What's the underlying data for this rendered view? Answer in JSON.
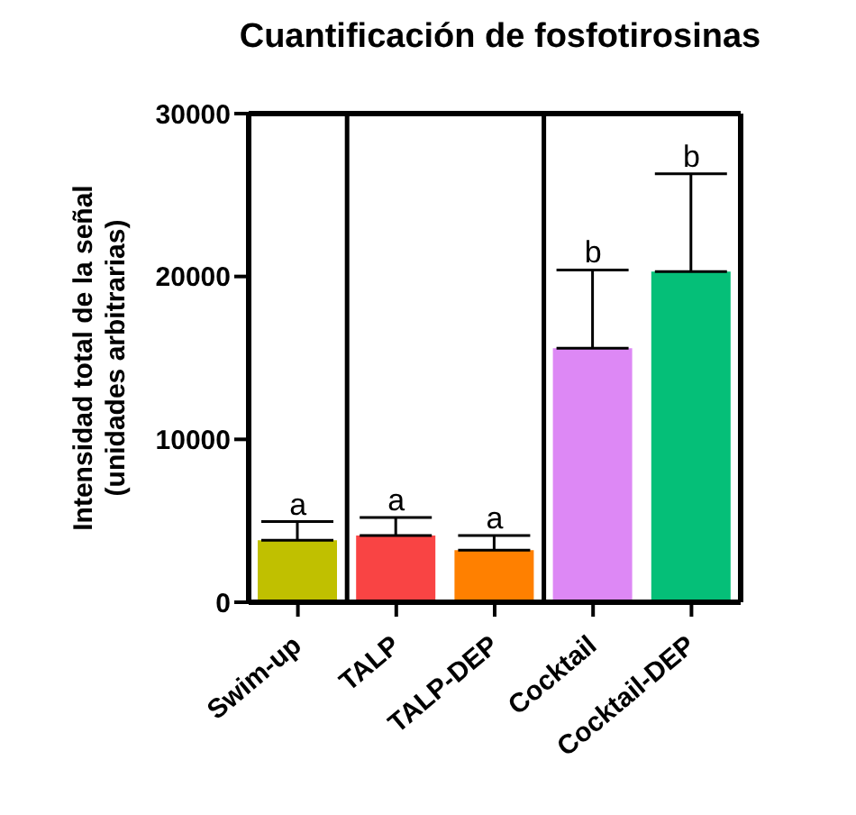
{
  "chart_data": {
    "type": "bar",
    "title": "Cuantificación de fosfotirosinas",
    "ylabel": "Intensidad total de la señal\n(unidades arbitrarias)",
    "categories": [
      "Swim-up",
      "TALP",
      "TALP-DEP",
      "Cocktail",
      "Cocktail-DEP"
    ],
    "values": [
      3800,
      4100,
      3200,
      15600,
      20300
    ],
    "colors": [
      "#c0c000",
      "#f94444",
      "#ff8000",
      "#dd88f5",
      "#05bf78"
    ],
    "errors": [
      [
        3800,
        4950
      ],
      [
        4100,
        5200
      ],
      [
        3200,
        4100
      ],
      [
        15600,
        20400
      ],
      [
        20300,
        26300
      ]
    ],
    "ylim": [
      0,
      30000
    ],
    "yticks": [
      0,
      10000,
      20000,
      30000
    ],
    "grid": false,
    "annotations": [
      {
        "text": "a",
        "x": "Swim-up",
        "y": 4950
      },
      {
        "text": "a",
        "x": "TALP",
        "y": 5200
      },
      {
        "text": "a",
        "x": "TALP-DEP",
        "y": 4100
      },
      {
        "text": "b",
        "x": "Cocktail",
        "y": 20400
      },
      {
        "text": "b",
        "x": "Cocktail-DEP",
        "y": 26300
      }
    ]
  }
}
